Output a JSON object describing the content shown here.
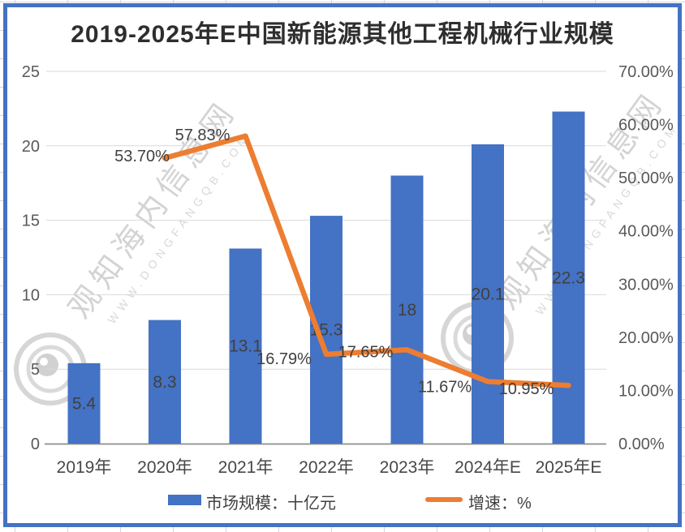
{
  "page": {
    "title": "2019-2025年E中国新能源其他工程机械行业规模"
  },
  "watermark": {
    "text": "观知海内信息网",
    "url": "WWW.DONGFANGQB.COM"
  },
  "legend": {
    "market_size_label": "市场规模：十亿元",
    "growth_label": "增速：%"
  },
  "colors": {
    "bar": "#4472C4",
    "line": "#ED7D31",
    "frame_border": "#4472C4",
    "gridline": "#D9D9D9",
    "axis_line": "#8C8C8C",
    "axis_text": "#595959",
    "label_text": "#404040"
  },
  "chart_data": {
    "type": "bar",
    "secondary_type": "line",
    "title": "2019-2025年E中国新能源其他工程机械行业规模",
    "categories": [
      "2019年",
      "2020年",
      "2021年",
      "2022年",
      "2023年",
      "2024年E",
      "2025年E"
    ],
    "series": [
      {
        "name": "市场规模：十亿元",
        "type": "bar",
        "axis": "left",
        "color": "#4472C4",
        "values": [
          5.4,
          8.3,
          13.1,
          15.3,
          18,
          20.1,
          22.3
        ],
        "data_labels": [
          "5.4",
          "8.3",
          "13.1",
          "15.3",
          "18",
          "20.1",
          "22.3"
        ]
      },
      {
        "name": "增速：%",
        "type": "line",
        "axis": "right",
        "color": "#ED7D31",
        "values": [
          null,
          53.7,
          57.83,
          16.79,
          17.65,
          11.67,
          10.95
        ],
        "data_labels": [
          null,
          "53.70%",
          "57.83%",
          "16.79%",
          "17.65%",
          "11.67%",
          "10.95%"
        ]
      }
    ],
    "left_axis": {
      "min": 0,
      "max": 25,
      "ticks": [
        "0",
        "5",
        "10",
        "15",
        "20",
        "25"
      ]
    },
    "right_axis": {
      "min": 0,
      "max": 70,
      "ticks": [
        "0.00%",
        "10.00%",
        "20.00%",
        "30.00%",
        "40.00%",
        "50.00%",
        "60.00%",
        "70.00%"
      ]
    },
    "grid": true,
    "legend_position": "bottom"
  }
}
